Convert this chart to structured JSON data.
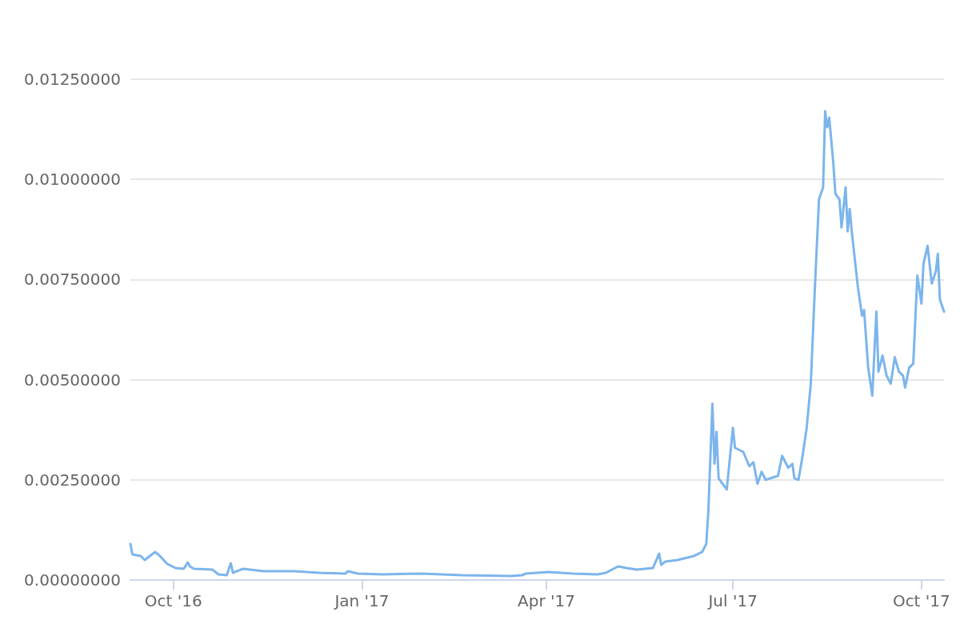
{
  "chart_data": {
    "type": "line",
    "x": [
      "2016-09-10",
      "2016-09-11",
      "2016-09-15",
      "2016-09-17",
      "2016-09-22",
      "2016-09-24",
      "2016-09-28",
      "2016-10-02",
      "2016-10-06",
      "2016-10-08",
      "2016-10-09",
      "2016-10-11",
      "2016-10-20",
      "2016-10-23",
      "2016-10-27",
      "2016-10-29",
      "2016-10-30",
      "2016-11-04",
      "2016-11-14",
      "2016-11-29",
      "2016-12-11",
      "2016-12-24",
      "2016-12-25",
      "2016-12-30",
      "2017-01-11",
      "2017-01-30",
      "2017-02-19",
      "2017-03-15",
      "2017-03-20",
      "2017-03-22",
      "2017-04-02",
      "2017-04-14",
      "2017-04-26",
      "2017-04-30",
      "2017-05-03",
      "2017-05-06",
      "2017-05-10",
      "2017-05-15",
      "2017-05-23",
      "2017-05-26",
      "2017-05-27",
      "2017-05-29",
      "2017-06-04",
      "2017-06-12",
      "2017-06-16",
      "2017-06-18",
      "2017-06-19",
      "2017-06-21",
      "2017-06-22",
      "2017-06-23",
      "2017-06-24",
      "2017-06-26",
      "2017-06-28",
      "2017-07-01",
      "2017-07-02",
      "2017-07-06",
      "2017-07-09",
      "2017-07-11",
      "2017-07-13",
      "2017-07-15",
      "2017-07-17",
      "2017-07-23",
      "2017-07-25",
      "2017-07-28",
      "2017-07-30",
      "2017-07-31",
      "2017-08-02",
      "2017-08-04",
      "2017-08-06",
      "2017-08-08",
      "2017-08-10",
      "2017-08-12",
      "2017-08-14",
      "2017-08-15",
      "2017-08-16",
      "2017-08-17",
      "2017-08-19",
      "2017-08-20",
      "2017-08-22",
      "2017-08-23",
      "2017-08-25",
      "2017-08-26",
      "2017-08-27",
      "2017-08-28",
      "2017-08-31",
      "2017-09-02",
      "2017-09-03",
      "2017-09-05",
      "2017-09-07",
      "2017-09-09",
      "2017-09-10",
      "2017-09-12",
      "2017-09-14",
      "2017-09-16",
      "2017-09-18",
      "2017-09-20",
      "2017-09-22",
      "2017-09-23",
      "2017-09-25",
      "2017-09-27",
      "2017-09-28",
      "2017-09-29",
      "2017-10-01",
      "2017-10-02",
      "2017-10-04",
      "2017-10-06",
      "2017-10-08",
      "2017-10-09",
      "2017-10-10",
      "2017-10-12"
    ],
    "series": [
      {
        "color": "#7cb5ec",
        "values": [
          0.0009,
          0.00064,
          0.0006,
          0.0005,
          0.0007,
          0.00062,
          0.0004,
          0.0003,
          0.00028,
          0.00044,
          0.00034,
          0.00028,
          0.00026,
          0.00014,
          0.00012,
          0.00042,
          0.00018,
          0.00028,
          0.00022,
          0.00022,
          0.00018,
          0.00016,
          0.00022,
          0.00016,
          0.00014,
          0.00016,
          0.00012,
          0.0001,
          0.00012,
          0.00016,
          0.0002,
          0.00016,
          0.00014,
          0.00018,
          0.00026,
          0.00034,
          0.0003,
          0.00026,
          0.0003,
          0.00066,
          0.00038,
          0.00046,
          0.0005,
          0.0006,
          0.0007,
          0.0009,
          0.0017,
          0.0044,
          0.0029,
          0.0037,
          0.00254,
          0.0024,
          0.00226,
          0.0038,
          0.0033,
          0.0032,
          0.00284,
          0.00294,
          0.0024,
          0.0027,
          0.0025,
          0.0026,
          0.0031,
          0.0028,
          0.0029,
          0.00254,
          0.0025,
          0.0031,
          0.0038,
          0.0049,
          0.0073,
          0.0095,
          0.0098,
          0.0117,
          0.0113,
          0.01154,
          0.0104,
          0.00964,
          0.0095,
          0.0088,
          0.0098,
          0.0087,
          0.00926,
          0.0087,
          0.0073,
          0.0066,
          0.00674,
          0.0053,
          0.0046,
          0.0067,
          0.0052,
          0.0056,
          0.0051,
          0.0049,
          0.00556,
          0.0052,
          0.0051,
          0.0048,
          0.0053,
          0.0054,
          0.0065,
          0.0076,
          0.0069,
          0.0079,
          0.00834,
          0.0074,
          0.0077,
          0.00814,
          0.007,
          0.0067
        ]
      }
    ],
    "xlim": [
      "2016-09-10",
      "2017-10-12"
    ],
    "xticks": [
      {
        "value": "2016-10-01",
        "label": "Oct '16"
      },
      {
        "value": "2017-01-01",
        "label": "Jan '17"
      },
      {
        "value": "2017-04-01",
        "label": "Apr '17"
      },
      {
        "value": "2017-07-01",
        "label": "Jul '17"
      },
      {
        "value": "2017-10-01",
        "label": "Oct '17"
      }
    ],
    "ylim": [
      0,
      0.0125
    ],
    "yticks": [
      {
        "value": 0,
        "label": "0.00000000"
      },
      {
        "value": 0.0025,
        "label": "0.00250000"
      },
      {
        "value": 0.005,
        "label": "0.00500000"
      },
      {
        "value": 0.0075,
        "label": "0.00750000"
      },
      {
        "value": 0.01,
        "label": "0.01000000"
      },
      {
        "value": 0.0125,
        "label": "0.01250000"
      }
    ],
    "grid": "y",
    "marker": "none",
    "line_style": "solid"
  }
}
